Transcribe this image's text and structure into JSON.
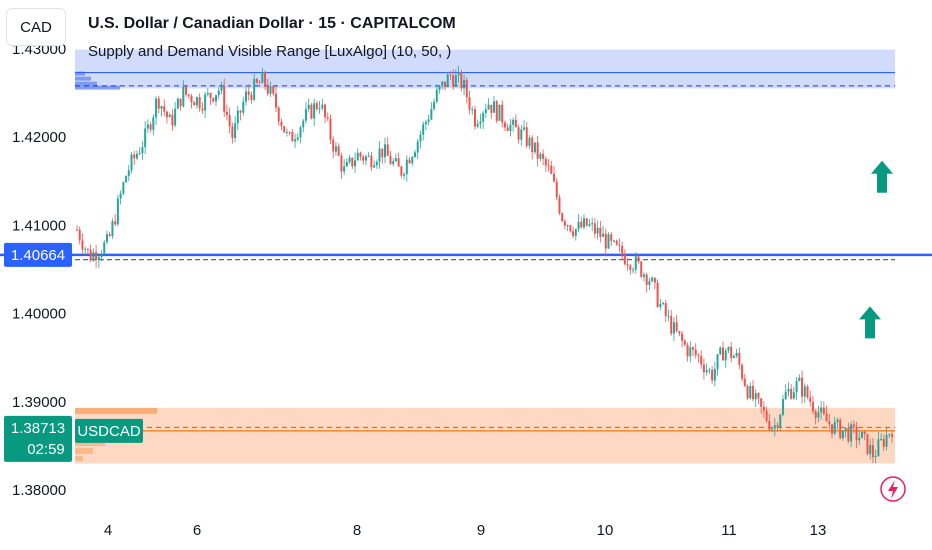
{
  "header": {
    "currency_button": "CAD",
    "title": "U.S. Dollar / Canadian Dollar · 15 · CAPITALCOM",
    "subtitle": "Supply and Demand Visible Range [LuxAlgo] (10, 50, )"
  },
  "colors": {
    "up": "#26a69a",
    "down": "#ef5350",
    "supply_zone": "#c9d6fb",
    "demand_zone": "#fdd5bd",
    "supply_line": "#2962ff",
    "demand_line": "#f57c00",
    "price_line": "#2962ff",
    "arrow": "#089981",
    "last_price_label": "#089981"
  },
  "chart_data": {
    "type": "candlestick",
    "symbol": "USDCAD",
    "title": "U.S. Dollar / Canadian Dollar · 15 · CAPITALCOM",
    "ylim": [
      1.3775,
      1.4315
    ],
    "y_ticks": [
      "1.43000",
      "1.42000",
      "1.41000",
      "1.40000",
      "1.39000",
      "1.38000"
    ],
    "x_ticks": [
      "4",
      "6",
      "8",
      "9",
      "10",
      "11",
      "13"
    ],
    "price_path": [
      [
        0.0,
        1.4095
      ],
      [
        0.02,
        1.4065
      ],
      [
        0.05,
        1.408
      ],
      [
        0.08,
        1.416
      ],
      [
        0.11,
        1.42
      ],
      [
        0.13,
        1.4245
      ],
      [
        0.15,
        1.4215
      ],
      [
        0.17,
        1.425
      ],
      [
        0.2,
        1.424
      ],
      [
        0.23,
        1.4255
      ],
      [
        0.25,
        1.42
      ],
      [
        0.27,
        1.4245
      ],
      [
        0.3,
        1.4265
      ],
      [
        0.32,
        1.4235
      ],
      [
        0.34,
        1.4195
      ],
      [
        0.37,
        1.4225
      ],
      [
        0.39,
        1.424
      ],
      [
        0.41,
        1.4195
      ],
      [
        0.43,
        1.416
      ],
      [
        0.45,
        1.418
      ],
      [
        0.47,
        1.4175
      ],
      [
        0.49,
        1.4185
      ],
      [
        0.52,
        1.416
      ],
      [
        0.55,
        1.42
      ],
      [
        0.58,
        1.425
      ],
      [
        0.6,
        1.427
      ],
      [
        0.62,
        1.426
      ],
      [
        0.64,
        1.422
      ],
      [
        0.66,
        1.424
      ],
      [
        0.68,
        1.4225
      ],
      [
        0.7,
        1.421
      ],
      [
        0.72,
        1.42
      ],
      [
        0.74,
        1.418
      ],
      [
        0.76,
        1.416
      ],
      [
        0.78,
        1.411
      ],
      [
        0.8,
        1.4095
      ],
      [
        0.82,
        1.41
      ],
      [
        0.84,
        1.409
      ],
      [
        0.86,
        1.4075
      ],
      [
        0.88,
        1.4065
      ],
      [
        0.9,
        1.4055
      ],
      [
        0.92,
        1.404
      ],
      [
        0.94,
        1.4005
      ],
      [
        0.96,
        1.398
      ],
      [
        0.98,
        1.396
      ],
      [
        1.0,
        1.395
      ],
      [
        1.02,
        1.393
      ],
      [
        1.04,
        1.396
      ],
      [
        1.06,
        1.395
      ],
      [
        1.08,
        1.391
      ],
      [
        1.1,
        1.389
      ],
      [
        1.12,
        1.387
      ],
      [
        1.14,
        1.391
      ],
      [
        1.16,
        1.392
      ],
      [
        1.18,
        1.39
      ],
      [
        1.2,
        1.388
      ],
      [
        1.22,
        1.387
      ],
      [
        1.24,
        1.3865
      ],
      [
        1.26,
        1.386
      ],
      [
        1.28,
        1.384
      ],
      [
        1.3,
        1.386
      ],
      [
        1.31,
        1.3871
      ]
    ],
    "supply_zone": {
      "top": 1.4299,
      "bottom": 1.4255,
      "level": 1.4273,
      "avg": 1.4258
    },
    "current_price_line": 1.40664,
    "gray_dashed_level": 1.4061,
    "demand_zone": {
      "top": 1.3893,
      "bottom": 1.383,
      "level": 1.3867,
      "avg": 1.3871
    },
    "last_price": {
      "symbol": "USDCAD",
      "value": "1.38713",
      "countdown": "02:59"
    },
    "price_line_label": "1.40664",
    "arrows": [
      {
        "direction": "up",
        "price": 1.4155
      },
      {
        "direction": "up",
        "price": 1.399
      }
    ]
  }
}
